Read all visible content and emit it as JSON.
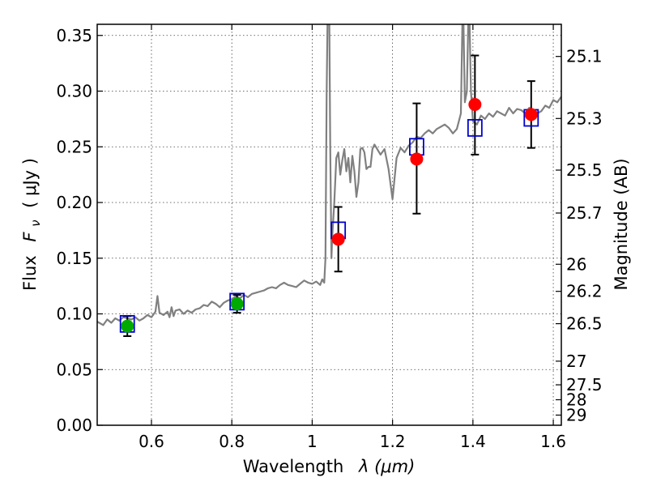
{
  "chart_data": {
    "type": "scatter",
    "xlabel": "Wavelength",
    "xlabel_math": "λ (μm)",
    "ylabel": "Flux",
    "ylabel_math": "F",
    "ylabel_sub": "ν",
    "ylabel_unit": "( μJy )",
    "y2label": "Magnitude (AB)",
    "xlim": [
      0.465,
      1.62
    ],
    "ylim": [
      0.0,
      0.36
    ],
    "grid": true,
    "x_ticks": [
      0.6,
      0.8,
      1.0,
      1.2,
      1.4,
      1.6
    ],
    "x_tick_labels": [
      "0.6",
      "0.8",
      "1",
      "1.2",
      "1.4",
      "1.6"
    ],
    "y_ticks": [
      0.0,
      0.05,
      0.1,
      0.15,
      0.2,
      0.25,
      0.3,
      0.35
    ],
    "y_tick_labels": [
      "0.00",
      "0.05",
      "0.10",
      "0.15",
      "0.20",
      "0.25",
      "0.30",
      "0.35"
    ],
    "mag_ticks": [
      25.1,
      25.3,
      25.5,
      25.7,
      26,
      26.2,
      26.5,
      27,
      27.5,
      28,
      29
    ],
    "mag_tick_labels": [
      "25.1",
      "25.3",
      "25.5",
      "25.7",
      "26",
      "26.2",
      "26.5",
      "27",
      "27.5",
      "28",
      "29"
    ],
    "colors": {
      "spectrum": "#808080",
      "optical_points": "#00aa00",
      "nir_points": "#ff0000",
      "model_points": "#0000cc",
      "errorbars": "#000000"
    },
    "series": [
      {
        "kind": "line",
        "x": [
          0.465,
          0.47,
          0.48,
          0.49,
          0.5,
          0.51,
          0.52,
          0.53,
          0.54,
          0.55,
          0.56,
          0.57,
          0.58,
          0.59,
          0.6,
          0.61,
          0.615,
          0.62,
          0.63,
          0.64,
          0.645,
          0.65,
          0.655,
          0.66,
          0.67,
          0.68,
          0.69,
          0.7,
          0.71,
          0.72,
          0.73,
          0.74,
          0.75,
          0.76,
          0.77,
          0.78,
          0.79,
          0.8,
          0.81,
          0.82,
          0.83,
          0.84,
          0.85,
          0.86,
          0.87,
          0.88,
          0.89,
          0.9,
          0.91,
          0.92,
          0.93,
          0.94,
          0.95,
          0.96,
          0.97,
          0.98,
          0.99,
          1.0,
          1.01,
          1.02,
          1.025,
          1.03,
          1.033,
          1.036,
          1.039,
          1.042,
          1.045,
          1.048,
          1.05,
          1.055,
          1.06,
          1.065,
          1.07,
          1.075,
          1.08,
          1.085,
          1.09,
          1.095,
          1.1,
          1.105,
          1.11,
          1.115,
          1.12,
          1.125,
          1.13,
          1.135,
          1.14,
          1.145,
          1.15,
          1.155,
          1.16,
          1.17,
          1.18,
          1.19,
          1.2,
          1.21,
          1.22,
          1.23,
          1.24,
          1.25,
          1.26,
          1.27,
          1.28,
          1.29,
          1.3,
          1.31,
          1.32,
          1.33,
          1.34,
          1.35,
          1.36,
          1.37,
          1.375,
          1.38,
          1.385,
          1.39,
          1.395,
          1.4,
          1.41,
          1.42,
          1.43,
          1.44,
          1.45,
          1.46,
          1.47,
          1.48,
          1.49,
          1.5,
          1.51,
          1.52,
          1.53,
          1.54,
          1.55,
          1.56,
          1.57,
          1.58,
          1.59,
          1.6,
          1.61,
          1.62
        ],
        "y": [
          0.093,
          0.092,
          0.09,
          0.095,
          0.092,
          0.096,
          0.094,
          0.097,
          0.096,
          0.095,
          0.097,
          0.094,
          0.096,
          0.099,
          0.097,
          0.102,
          0.116,
          0.101,
          0.099,
          0.102,
          0.097,
          0.106,
          0.098,
          0.103,
          0.104,
          0.1,
          0.103,
          0.101,
          0.104,
          0.105,
          0.108,
          0.107,
          0.111,
          0.109,
          0.106,
          0.11,
          0.112,
          0.113,
          0.116,
          0.114,
          0.117,
          0.115,
          0.118,
          0.119,
          0.12,
          0.121,
          0.123,
          0.124,
          0.123,
          0.126,
          0.128,
          0.126,
          0.125,
          0.124,
          0.127,
          0.13,
          0.128,
          0.127,
          0.129,
          0.126,
          0.131,
          0.128,
          0.15,
          0.3,
          0.39,
          0.39,
          0.25,
          0.15,
          0.17,
          0.2,
          0.24,
          0.245,
          0.225,
          0.238,
          0.248,
          0.228,
          0.24,
          0.218,
          0.242,
          0.228,
          0.205,
          0.218,
          0.248,
          0.249,
          0.245,
          0.23,
          0.232,
          0.232,
          0.248,
          0.252,
          0.249,
          0.243,
          0.248,
          0.23,
          0.203,
          0.24,
          0.249,
          0.245,
          0.251,
          0.254,
          0.259,
          0.258,
          0.262,
          0.265,
          0.262,
          0.266,
          0.268,
          0.27,
          0.267,
          0.262,
          0.266,
          0.28,
          0.39,
          0.29,
          0.3,
          0.39,
          0.3,
          0.273,
          0.27,
          0.278,
          0.275,
          0.28,
          0.277,
          0.282,
          0.28,
          0.278,
          0.285,
          0.28,
          0.284,
          0.283,
          0.28,
          0.285,
          0.283,
          0.28,
          0.282,
          0.287,
          0.285,
          0.292,
          0.29,
          0.295
        ]
      },
      {
        "kind": "points",
        "marker": "circle",
        "color": "#00aa00",
        "points": [
          {
            "x": 0.54,
            "y": 0.089,
            "err": 0.009
          },
          {
            "x": 0.813,
            "y": 0.109,
            "err": 0.008
          }
        ]
      },
      {
        "kind": "points",
        "marker": "circle",
        "color": "#ff0000",
        "points": [
          {
            "x": 1.065,
            "y": 0.167,
            "err_lo": 0.029,
            "err_hi": 0.029
          },
          {
            "x": 1.26,
            "y": 0.239,
            "err_lo": 0.049,
            "err_hi": 0.05
          },
          {
            "x": 1.405,
            "y": 0.288,
            "err_lo": 0.045,
            "err_hi": 0.044
          },
          {
            "x": 1.545,
            "y": 0.279,
            "err_lo": 0.03,
            "err_hi": 0.03
          }
        ]
      },
      {
        "kind": "points",
        "marker": "square-open",
        "color": "#0000cc",
        "points": [
          {
            "x": 0.54,
            "y": 0.091
          },
          {
            "x": 0.813,
            "y": 0.111
          },
          {
            "x": 1.065,
            "y": 0.175
          },
          {
            "x": 1.26,
            "y": 0.25
          },
          {
            "x": 1.405,
            "y": 0.267
          },
          {
            "x": 1.545,
            "y": 0.276
          }
        ]
      }
    ]
  }
}
